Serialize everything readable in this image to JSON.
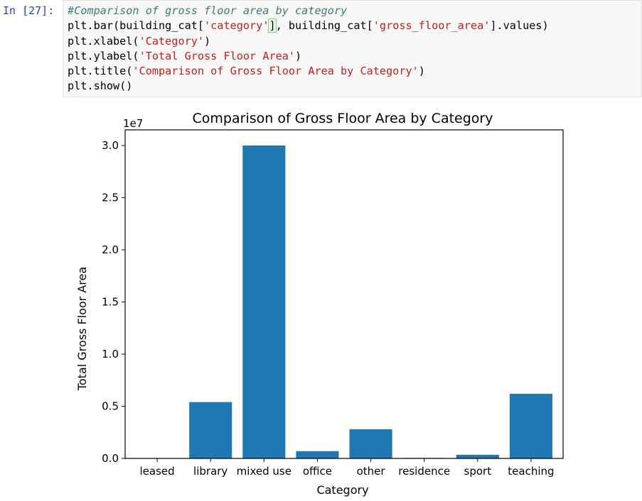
{
  "cell": {
    "prompt": "In [27]:",
    "code": {
      "l1": "#Comparison of gross floor area by category",
      "l2_a": "plt.bar(building_cat[",
      "l2_b": "'category'",
      "l2_c": "]",
      "l2_d": ", building_cat[",
      "l2_e": "'gross_floor_area'",
      "l2_f": "].values)",
      "l3_a": "plt.xlabel(",
      "l3_b": "'Category'",
      "l3_c": ")",
      "l4_a": "plt.ylabel(",
      "l4_b": "'Total Gross Floor Area'",
      "l4_c": ")",
      "l5_a": "plt.title(",
      "l5_b": "'Comparison of Gross Floor Area by Category'",
      "l5_c": ")",
      "l6": "plt.show()"
    }
  },
  "chart_data": {
    "type": "bar",
    "title": "Comparison of Gross Floor Area by Category",
    "xlabel": "Category",
    "ylabel": "Total Gross Floor Area",
    "offset_text": "1e7",
    "categories": [
      "leased",
      "library",
      "mixed use",
      "office",
      "other",
      "residence",
      "sport",
      "teaching"
    ],
    "values": [
      0.0,
      0.54,
      3.0,
      0.07,
      0.28,
      0.005,
      0.035,
      0.62
    ],
    "ylim": [
      0,
      3.15
    ],
    "yticks": [
      0.0,
      0.5,
      1.0,
      1.5,
      2.0,
      2.5,
      3.0
    ],
    "ytick_labels": [
      "0.0",
      "0.5",
      "1.0",
      "1.5",
      "2.0",
      "2.5",
      "3.0"
    ],
    "bar_color": "#1f77b4",
    "grid": false
  }
}
